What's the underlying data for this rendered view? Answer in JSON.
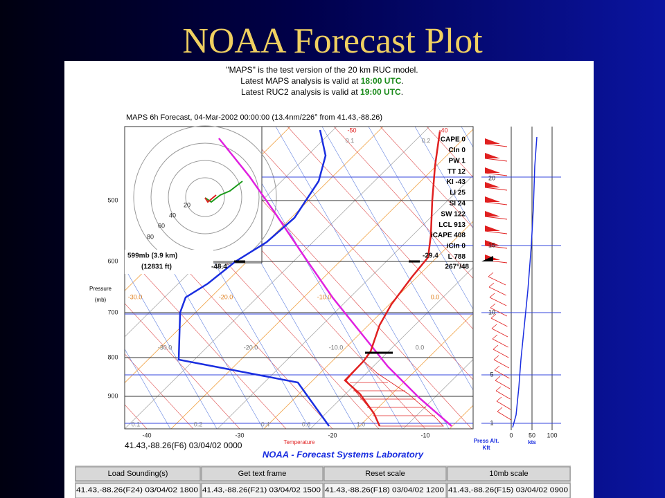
{
  "slide": {
    "title": "NOAA Forecast Plot"
  },
  "header": {
    "line1": "\"MAPS\" is the test version of the 20 km RUC model.",
    "line2": [
      "Latest MAPS analysis is valid at ",
      "18:00 UTC",
      "."
    ],
    "line3": [
      "Latest RUC2 analysis is valid at ",
      "19:00 UTC",
      "."
    ]
  },
  "plot": {
    "title": "MAPS 6h Forecast, 04-Mar-2002 00:00:00 (13.4nm/226° from 41.43,-88.26)",
    "indices": [
      "CAPE 0",
      "CIn 0",
      "PW 1",
      "TT 12",
      "KI -43",
      "LI 25",
      "SI 24",
      "SW 122",
      "LCL 913",
      "iCAPE 408",
      "iCIn 0",
      "L 788"
    ],
    "cursor": {
      "pressure": "599mb (3.9 km)",
      "height": "(12831 ft)",
      "dewpoint": "-48.4",
      "temp": "-29.4",
      "wind": "267°/48"
    },
    "hodograph_rings": [
      "20",
      "40",
      "60",
      "80"
    ],
    "isotherm_labels": [
      "-50",
      "-40",
      "-30.0",
      "-20.0",
      "-10.0",
      "0.0"
    ],
    "mixing_labels": [
      "0.1",
      "0.2",
      "0.4",
      "0.6",
      "1.0"
    ],
    "pressure_label": [
      "Pressure",
      "(mb)"
    ],
    "pressure_ticks": [
      "500",
      "600",
      "700",
      "800",
      "900"
    ],
    "temp_ticks": [
      "-40",
      "-30",
      "-20",
      "-10"
    ],
    "temperature_label": "Temperature",
    "location": "41.43,-88.26(F6) 03/04/02 0000",
    "lab": "NOAA - Forecast Systems Laboratory"
  },
  "wind_panel": {
    "alt_ticks": [
      "1",
      "5",
      "10",
      "15",
      "20"
    ],
    "speed_ticks": [
      "0",
      "50",
      "100"
    ],
    "alt_label": [
      "Press Alt.",
      "Kft"
    ],
    "speed_label": "kts"
  },
  "buttons": [
    "Load Sounding(s)",
    "Get text frame",
    "Reset scale",
    "10mb scale"
  ],
  "frames": [
    "41.43,-88.26(F24) 03/04/02 1800",
    "41.43,-88.26(F21) 03/04/02 1500",
    "41.43,-88.26(F18) 03/04/02 1200",
    "41.43,-88.26(F15) 03/04/02 0900"
  ]
}
